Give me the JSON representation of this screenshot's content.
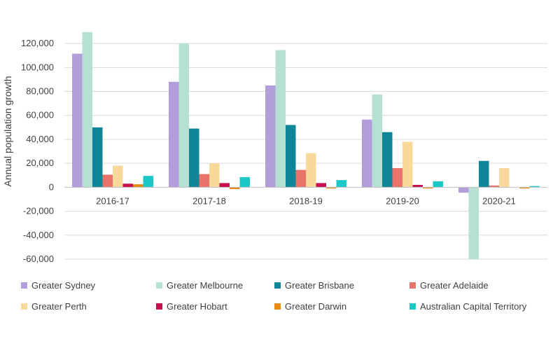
{
  "chart_data": {
    "type": "bar",
    "title": "",
    "xlabel": "",
    "ylabel": "Annual population growth",
    "ylim": [
      -60000,
      130000
    ],
    "yticks": [
      120000,
      100000,
      80000,
      60000,
      40000,
      20000,
      0,
      -20000,
      -40000,
      -60000
    ],
    "ytick_labels": [
      "120,000",
      "100,000",
      "80,000",
      "60,000",
      "40,000",
      "20,000",
      "0",
      "-20,000",
      "-40,000",
      "-60,000"
    ],
    "grid": true,
    "legend_position": "bottom",
    "categories": [
      "2016-17",
      "2017-18",
      "2018-19",
      "2019-20",
      "2020-21"
    ],
    "series": [
      {
        "name": "Greater Sydney",
        "color": "#B39DDB",
        "values": [
          111500,
          88000,
          85000,
          56500,
          -4500
        ]
      },
      {
        "name": "Greater Melbourne",
        "color": "#B7E0D5",
        "values": [
          129500,
          120000,
          114500,
          77500,
          -60000
        ]
      },
      {
        "name": "Greater Brisbane",
        "color": "#0E8698",
        "values": [
          50000,
          49000,
          52000,
          46000,
          22000
        ]
      },
      {
        "name": "Greater Adelaide",
        "color": "#E8736A",
        "values": [
          10500,
          11000,
          14500,
          16000,
          1500
        ]
      },
      {
        "name": "Greater Perth",
        "color": "#F9D99A",
        "values": [
          18000,
          20000,
          28500,
          38000,
          16000
        ]
      },
      {
        "name": "Greater Hobart",
        "color": "#C8104E",
        "values": [
          3000,
          3500,
          3500,
          2000,
          0
        ]
      },
      {
        "name": "Greater Darwin",
        "color": "#E88A12",
        "values": [
          2500,
          -1500,
          -1000,
          -1000,
          -1000
        ]
      },
      {
        "name": "Australian Capital Territory",
        "color": "#1CC7C8",
        "values": [
          9500,
          8500,
          6000,
          5000,
          1000
        ]
      }
    ]
  }
}
